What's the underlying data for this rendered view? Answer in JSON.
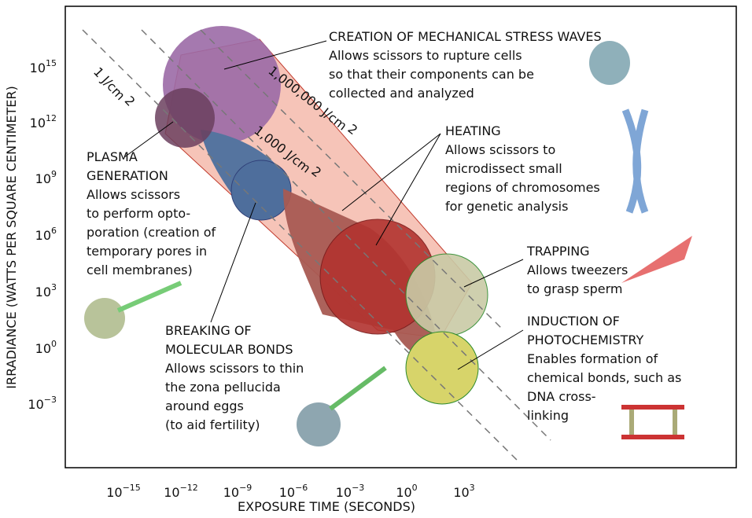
{
  "axes": {
    "x": {
      "label": "EXPOSURE TIME (SECONDS)",
      "ticks": [
        {
          "base": "10",
          "exponent": "−15"
        },
        {
          "base": "10",
          "exponent": "−12"
        },
        {
          "base": "10",
          "exponent": "−9"
        },
        {
          "base": "10",
          "exponent": "−6"
        },
        {
          "base": "10",
          "exponent": "−3"
        },
        {
          "base": "10",
          "exponent": "0"
        },
        {
          "base": "10",
          "exponent": "3"
        }
      ]
    },
    "y": {
      "label": "IRRADIANCE (WATTS PER SQUARE CENTIMETER)",
      "ticks": [
        {
          "base": "10",
          "exponent": "15"
        },
        {
          "base": "10",
          "exponent": "12"
        },
        {
          "base": "10",
          "exponent": "9"
        },
        {
          "base": "10",
          "exponent": "6"
        },
        {
          "base": "10",
          "exponent": "3"
        },
        {
          "base": "10",
          "exponent": "0"
        },
        {
          "base": "10",
          "exponent": "−3"
        }
      ]
    }
  },
  "fluence_lines": [
    {
      "text": "1 J/cm",
      "exponent": "2"
    },
    {
      "text": "1,000 J/cm",
      "exponent": "2"
    },
    {
      "text": "1,000,000 J/cm",
      "exponent": "2"
    }
  ],
  "annotations": [
    {
      "lines": [
        "CREATION OF MECHANICAL STRESS WAVES",
        "Allows scissors to rupture cells",
        "so that their components can be",
        "collected and analyzed"
      ]
    },
    {
      "lines": [
        "HEATING",
        "Allows scissors to",
        "microdissect small",
        "regions of chromosomes",
        "for genetic analysis"
      ]
    },
    {
      "lines": [
        "PLASMA",
        "GENERATION",
        "Allows scissors",
        "to perform opto-",
        "poration (creation of",
        "temporary pores in",
        "cell membranes)"
      ]
    },
    {
      "lines": [
        "BREAKING OF",
        "MOLECULAR BONDS",
        "Allows scissors to thin",
        "the zona pellucida",
        "around eggs",
        "(to aid fertility)"
      ]
    },
    {
      "lines": [
        "TRAPPING",
        "Allows tweezers",
        "to grasp sperm"
      ]
    },
    {
      "lines": [
        "INDUCTION OF",
        "PHOTOCHEMISTRY",
        "Enables formation of",
        "chemical bonds, such as",
        "DNA cross-",
        "linking"
      ]
    }
  ]
}
